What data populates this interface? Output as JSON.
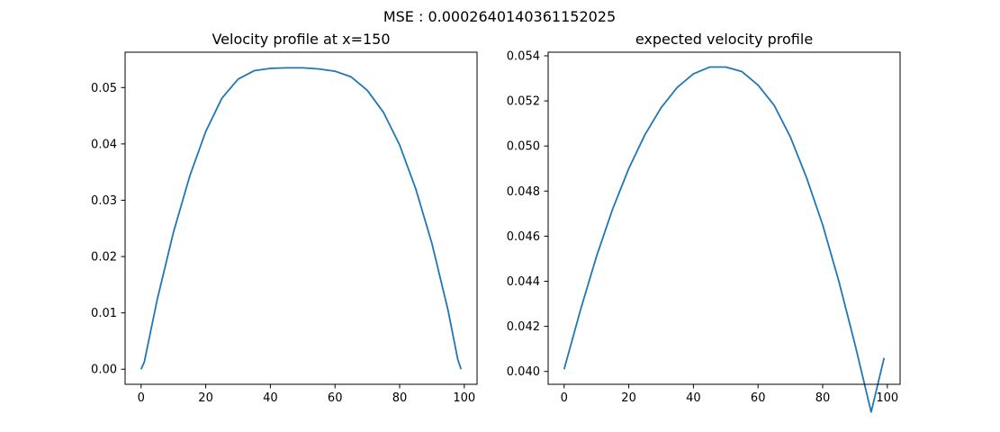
{
  "figure": {
    "suptitle": "MSE : 0.0002640140361152025",
    "line_color": "#1f77b4"
  },
  "chart_data": [
    {
      "type": "line",
      "title": "Velocity profile at x=150",
      "xlabel": "",
      "ylabel": "",
      "xlim": [
        -4.95,
        103.95
      ],
      "ylim": [
        -0.00268,
        0.05628
      ],
      "grid": false,
      "legend": "none",
      "xticks": [
        0,
        20,
        40,
        60,
        80,
        100
      ],
      "xtick_labels": [
        "0",
        "20",
        "40",
        "60",
        "80",
        "100"
      ],
      "yticks": [
        0.0,
        0.01,
        0.02,
        0.03,
        0.04,
        0.05
      ],
      "ytick_labels": [
        "0.00",
        "0.01",
        "0.02",
        "0.03",
        "0.04",
        "0.05"
      ],
      "series": [
        {
          "x": [
            0,
            1,
            5,
            10,
            15,
            20,
            25,
            30,
            35,
            40,
            45,
            48,
            50,
            55,
            60,
            65,
            70,
            75,
            80,
            85,
            90,
            95,
            98,
            99
          ],
          "y": [
            0.0,
            0.0013,
            0.0124,
            0.0243,
            0.0342,
            0.0422,
            0.0481,
            0.0515,
            0.053,
            0.0534,
            0.0535,
            0.0535,
            0.0535,
            0.0533,
            0.0529,
            0.0519,
            0.0495,
            0.0456,
            0.0398,
            0.032,
            0.0223,
            0.0104,
            0.0017,
            0.0
          ]
        }
      ]
    },
    {
      "type": "line",
      "title": "expected velocity profile",
      "xlabel": "",
      "ylabel": "",
      "xlim": [
        -4.95,
        103.95
      ],
      "ylim": [
        0.03943,
        0.05416
      ],
      "grid": false,
      "legend": "none",
      "xticks": [
        0,
        20,
        40,
        60,
        80,
        100
      ],
      "xtick_labels": [
        "0",
        "20",
        "40",
        "60",
        "80",
        "100"
      ],
      "yticks": [
        0.04,
        0.042,
        0.044,
        0.046,
        0.048,
        0.05,
        0.052,
        0.054
      ],
      "ytick_labels": [
        "0.040",
        "0.042",
        "0.044",
        "0.046",
        "0.048",
        "0.050",
        "0.052",
        "0.054"
      ],
      "series": [
        {
          "x": [
            0,
            5,
            10,
            15,
            20,
            25,
            30,
            35,
            40,
            45,
            50,
            55,
            60,
            65,
            70,
            75,
            80,
            85,
            90,
            95,
            99
          ],
          "y": [
            0.0401,
            0.0427,
            0.0451,
            0.0472,
            0.049,
            0.0505,
            0.0517,
            0.0526,
            0.0532,
            0.0535,
            0.0535,
            0.0533,
            0.0527,
            0.0518,
            0.0504,
            0.0486,
            0.0465,
            0.044,
            0.0412,
            0.0382,
            0.0406
          ]
        }
      ]
    }
  ]
}
